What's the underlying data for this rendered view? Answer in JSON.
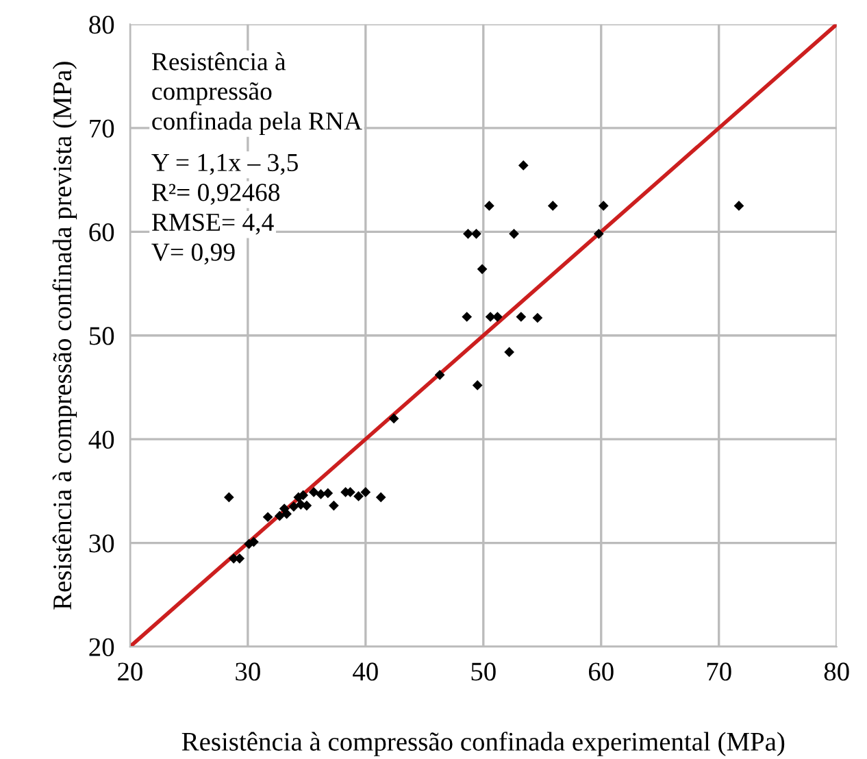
{
  "chart_data": {
    "type": "scatter",
    "xlabel": "Resistência à compressão confinada experimental (MPa)",
    "ylabel": "Resistência à compressão confinada prevista (MPa)",
    "annotations": [
      "Resistência à\ncompressão\nconfinada pela RNA",
      "Y = 1,1x – 3,5",
      "R²= 0,92468",
      "RMSE= 4,4",
      "V= 0,99"
    ],
    "series": [
      {
        "color": "#000000",
        "marker": "diamond",
        "x": [
          28.4,
          28.8,
          29.3,
          30.1,
          30.5,
          31.7,
          32.7,
          33.1,
          33.3,
          33.9,
          34.5,
          35.0,
          34.3,
          34.7,
          35.6,
          36.2,
          36.8,
          37.3,
          38.3,
          38.7,
          39.4,
          39.8,
          40.0,
          41.3,
          42.4,
          46.3,
          49.5,
          52.2,
          48.6,
          50.6,
          51.2,
          53.2,
          54.6,
          49.9,
          48.7,
          49.4,
          52.6,
          59.8,
          50.5,
          55.9,
          60.2,
          71.7,
          53.4
        ],
        "values": [
          34.4,
          28.5,
          28.5,
          29.9,
          30.1,
          32.5,
          32.6,
          33.3,
          32.8,
          33.5,
          33.7,
          33.6,
          34.4,
          34.6,
          34.9,
          34.7,
          34.8,
          33.6,
          34.9,
          34.9,
          34.5,
          null,
          34.9,
          34.4,
          42.0,
          46.2,
          45.2,
          48.4,
          51.8,
          51.8,
          51.8,
          51.8,
          51.7,
          56.4,
          59.8,
          59.8,
          59.8,
          59.8,
          62.5,
          62.5,
          62.5,
          62.5,
          66.4
        ]
      },
      {
        "type": "line",
        "color": "#cc1f1f",
        "line_style": "solid",
        "x": [
          20,
          80
        ],
        "values": [
          20,
          80
        ]
      }
    ],
    "xlim": [
      20,
      80
    ],
    "ylim": [
      20,
      80
    ],
    "xticks": [
      20,
      30,
      40,
      50,
      60,
      70,
      80
    ],
    "yticks": [
      20,
      30,
      40,
      50,
      60,
      70,
      80
    ],
    "grid": true
  }
}
